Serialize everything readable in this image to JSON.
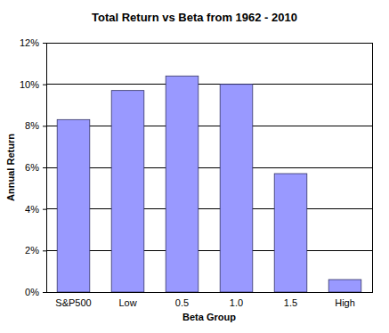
{
  "chart_data": {
    "type": "bar",
    "title": "Total Return vs Beta from 1962 - 2010",
    "x_label": "Beta Group",
    "y_label": "Annual Return",
    "categories": [
      "S&P500",
      "Low",
      "0.5",
      "1.0",
      "1.5",
      "High"
    ],
    "values": [
      8.3,
      9.7,
      10.4,
      10.0,
      5.7,
      0.6
    ],
    "color": "#9999ff",
    "ylim": [
      0,
      12
    ],
    "yticks": [
      {
        "value": 0,
        "label": "0%"
      },
      {
        "value": 2,
        "label": "2%"
      },
      {
        "value": 4,
        "label": "4%"
      },
      {
        "value": 6,
        "label": "6%"
      },
      {
        "value": 8,
        "label": "8%"
      },
      {
        "value": 10,
        "label": "10%"
      },
      {
        "value": 12,
        "label": "12%"
      }
    ],
    "grid": true
  }
}
